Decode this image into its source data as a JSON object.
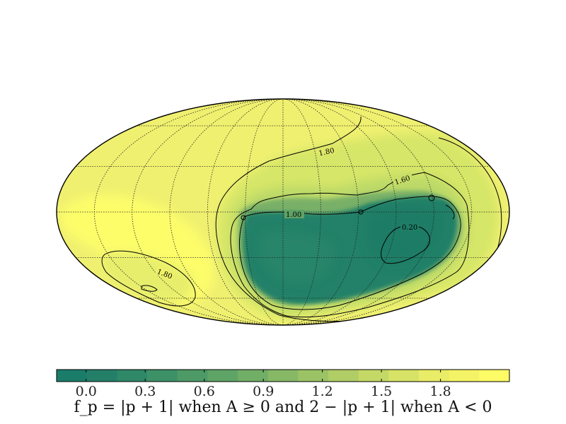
{
  "map": {
    "projection": "mollweide",
    "graticule_style": "dotted",
    "colors": {
      "low": "#1b7f6a",
      "mid": "#55a86a",
      "high_mid": "#c8e26a",
      "high": "#fdfd66",
      "contour": "#000000",
      "outline": "#000000"
    },
    "contour_labels": [
      "1.80",
      "1.60",
      "1.00",
      "0.20",
      "1.80"
    ]
  },
  "colorbar": {
    "min": -0.15,
    "max": 2.15,
    "ticks": [
      "0.0",
      "0.3",
      "0.6",
      "0.9",
      "1.2",
      "1.5",
      "1.8"
    ],
    "tick_values": [
      0.0,
      0.3,
      0.6,
      0.9,
      1.2,
      1.5,
      1.8
    ],
    "steps": [
      "#1a7d6a",
      "#247f69",
      "#2f8868",
      "#3d9167",
      "#4d9a66",
      "#5ea466",
      "#71ae66",
      "#86b866",
      "#9bc366",
      "#b0cd66",
      "#c4d866",
      "#d7e366",
      "#e8ec66",
      "#f4f366",
      "#fdfb66"
    ]
  },
  "caption": "f_p = |p + 1| when A ≥ 0 and 2 − |p + 1| when A < 0"
}
